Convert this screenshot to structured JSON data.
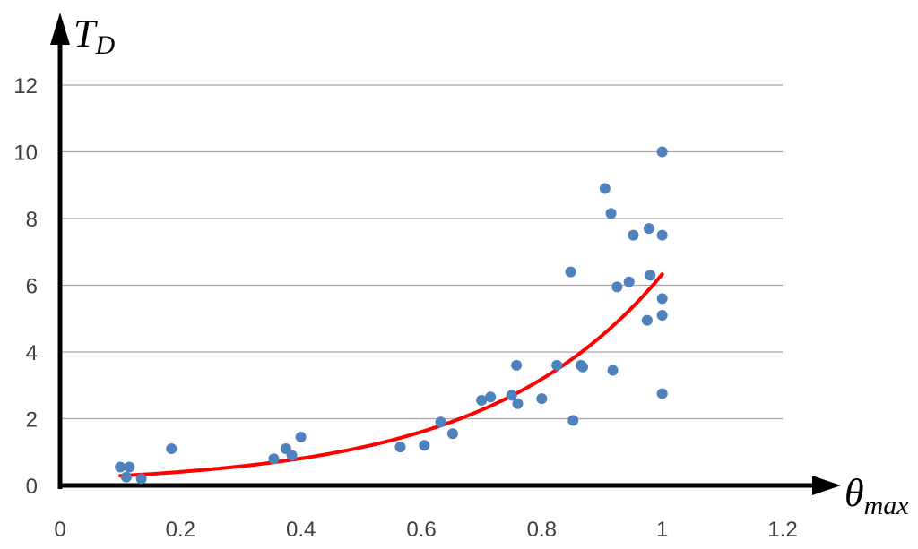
{
  "chart_data": {
    "type": "scatter",
    "xlabel": {
      "main": "θ",
      "sub": "max"
    },
    "ylabel": {
      "main": "T",
      "sub": "D"
    },
    "xlim": [
      0,
      1.2
    ],
    "ylim": [
      0,
      12
    ],
    "x_ticks": [
      "0",
      "0.2",
      "0.4",
      "0.6",
      "0.8",
      "1",
      "1.2"
    ],
    "x_tick_values": [
      0,
      0.2,
      0.4,
      0.6,
      0.8,
      1.0,
      1.2
    ],
    "y_ticks": [
      "0",
      "2",
      "4",
      "6",
      "8",
      "10",
      "12"
    ],
    "y_tick_values": [
      0,
      2,
      4,
      6,
      8,
      10,
      12
    ],
    "grid": "horizontal",
    "series": [
      {
        "kind": "points",
        "color": "#4f81bd",
        "points": [
          [
            0.1,
            0.55
          ],
          [
            0.11,
            0.25
          ],
          [
            0.115,
            0.55
          ],
          [
            0.135,
            0.2
          ],
          [
            0.185,
            1.1
          ],
          [
            0.355,
            0.8
          ],
          [
            0.375,
            1.1
          ],
          [
            0.385,
            0.9
          ],
          [
            0.4,
            1.45
          ],
          [
            0.565,
            1.15
          ],
          [
            0.605,
            1.2
          ],
          [
            0.632,
            1.9
          ],
          [
            0.652,
            1.55
          ],
          [
            0.7,
            2.55
          ],
          [
            0.715,
            2.65
          ],
          [
            0.75,
            2.7
          ],
          [
            0.758,
            3.6
          ],
          [
            0.76,
            2.45
          ],
          [
            0.8,
            2.6
          ],
          [
            0.825,
            3.6
          ],
          [
            0.848,
            6.4
          ],
          [
            0.852,
            1.95
          ],
          [
            0.865,
            3.6
          ],
          [
            0.868,
            3.55
          ],
          [
            0.905,
            8.9
          ],
          [
            0.915,
            8.15
          ],
          [
            0.918,
            3.45
          ],
          [
            0.925,
            5.95
          ],
          [
            0.945,
            6.1
          ],
          [
            0.952,
            7.5
          ],
          [
            0.975,
            4.95
          ],
          [
            0.978,
            7.7
          ],
          [
            0.98,
            6.3
          ],
          [
            1.0,
            10.0
          ],
          [
            1.0,
            7.5
          ],
          [
            1.0,
            5.6
          ],
          [
            1.0,
            5.1
          ],
          [
            1.0,
            2.75
          ]
        ]
      },
      {
        "kind": "trendline",
        "color": "#ff0000",
        "from_x": 0.1,
        "to_x": 1.0,
        "a": 0.205,
        "b": 3.43
      }
    ]
  }
}
